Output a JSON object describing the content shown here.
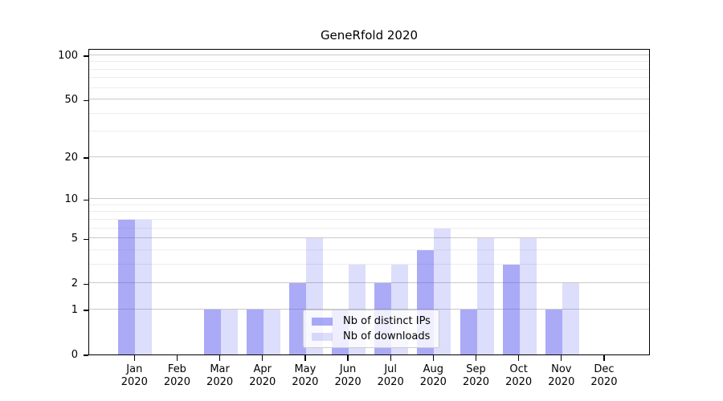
{
  "title": "GeneRfold 2020",
  "chart_data": {
    "type": "bar",
    "title": "GeneRfold 2020",
    "categories": [
      "Jan",
      "Feb",
      "Mar",
      "Apr",
      "May",
      "Jun",
      "Jul",
      "Aug",
      "Sep",
      "Oct",
      "Nov",
      "Dec"
    ],
    "category_year_label": "2020",
    "series": [
      {
        "name": "Nb of distinct IPs",
        "key": "distinct-ips",
        "color_base": "#5555f0",
        "alpha": 0.5,
        "values": [
          7,
          0,
          1,
          1,
          2,
          1,
          2,
          4,
          1,
          3,
          1,
          0
        ]
      },
      {
        "name": "Nb of downloads",
        "key": "downloads",
        "color_base": "#5555f0",
        "alpha": 0.2,
        "values": [
          7,
          0,
          1,
          1,
          5,
          3,
          3,
          6,
          5,
          5,
          2,
          0
        ]
      }
    ],
    "yscale": "log1p",
    "yticks": [
      0,
      1,
      2,
      5,
      10,
      20,
      50,
      100
    ],
    "yticks_minor": [
      3,
      4,
      6,
      7,
      8,
      9,
      30,
      40,
      60,
      70,
      80,
      90
    ],
    "ylim": [
      0,
      112
    ],
    "xlabel": "",
    "ylabel": "",
    "grid": true,
    "legend_position": "lower-center"
  },
  "colors": {
    "bar_distinct_ips_on_white": "#aaaaf7",
    "bar_downloads_on_white": "#ddddfc",
    "grid_major": "#c9c9c9",
    "grid_minor": "#ededed",
    "spine": "#000000",
    "text": "#000000",
    "legend_border": "#cccccc"
  }
}
